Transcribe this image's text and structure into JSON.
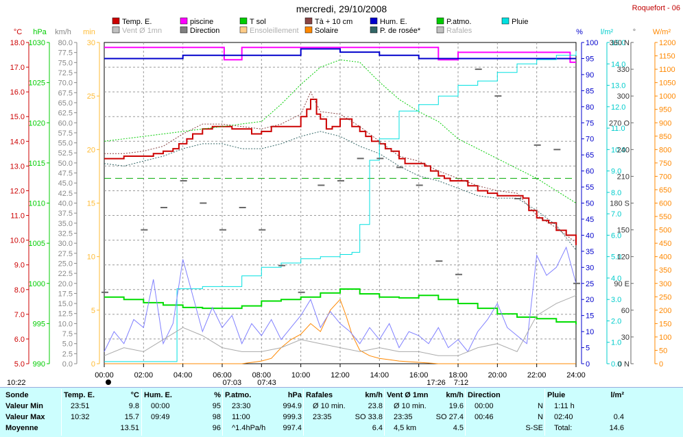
{
  "header": {
    "title": "mercredi, 29/10/2008",
    "location": "Roquefort - 06"
  },
  "legend": [
    {
      "label": "Temp. E.",
      "color": "#cc0000",
      "faded": false
    },
    {
      "label": "piscine",
      "color": "#ff00ff",
      "faded": false
    },
    {
      "label": "T sol",
      "color": "#00cc00",
      "faded": false
    },
    {
      "label": "Tà + 10 cm",
      "color": "#884444",
      "faded": false
    },
    {
      "label": "Hum. E.",
      "color": "#0000cc",
      "faded": false
    },
    {
      "label": "P.atmo.",
      "color": "#00cc00",
      "faded": false
    },
    {
      "label": "Pluie",
      "color": "#00e0e0",
      "faded": false
    },
    {
      "label": "Vent Ø 1mn",
      "color": "#c0c0c0",
      "faded": true
    },
    {
      "label": "Direction",
      "color": "#808080",
      "faded": false
    },
    {
      "label": "Ensoleillement",
      "color": "#ffcc88",
      "faded": true
    },
    {
      "label": "Solaire",
      "color": "#ff8800",
      "faded": false
    },
    {
      "label": "P. de rosée*",
      "color": "#336666",
      "faded": false
    },
    {
      "label": "Rafales",
      "color": "#c0c0c0",
      "faded": true
    }
  ],
  "axes_units": {
    "temp": "°C",
    "press": "hPa",
    "wind": "km/h",
    "sun": "min",
    "hum": "%",
    "rain": "l/m²",
    "dir": "°",
    "solar": "W/m²"
  },
  "chart_data": {
    "type": "line",
    "x_ticks": [
      "00:00",
      "02:00",
      "04:00",
      "06:00",
      "08:00",
      "10:00",
      "12:00",
      "14:00",
      "16:00",
      "18:00",
      "20:00",
      "22:00",
      "24:00"
    ],
    "y_axes": {
      "temp": {
        "min": 5.0,
        "max": 18.0,
        "step": 1.0,
        "unit": "°C"
      },
      "press": {
        "min": 990,
        "max": 1030,
        "step": 5,
        "unit": "hPa"
      },
      "wind": {
        "min": 0.0,
        "max": 80.0,
        "step": 2.5,
        "unit": "km/h"
      },
      "sun": {
        "min": 0,
        "max": 30,
        "step": 5,
        "unit": "min"
      },
      "hum": {
        "min": 0,
        "max": 100,
        "step": 5,
        "unit": "%"
      },
      "rain": {
        "min": 0.0,
        "max": 15.0,
        "step": 1.0,
        "unit": "l/m²"
      },
      "dir": {
        "ticks": [
          "0 N",
          "30",
          "60",
          "90 E",
          "120",
          "150",
          "180 S",
          "210",
          "240",
          "270 O",
          "300",
          "330",
          "360 N"
        ],
        "unit": "°"
      },
      "solar": {
        "min": 0,
        "max": 1200,
        "step": 50,
        "unit": "W/m²"
      }
    },
    "day_marks": {
      "sunrise": "07:03",
      "sunset": "17:26",
      "noon_start": "07:43",
      "noon_end": "7:12",
      "day_start": "10:22"
    },
    "series": [
      {
        "name": "Temp. E.",
        "axis": "temp",
        "x": [
          0,
          0.5,
          1,
          1.5,
          2,
          2.5,
          3,
          3.5,
          3.8,
          4.2,
          4.5,
          5,
          5.5,
          6,
          6.5,
          7,
          7.5,
          8,
          8.5,
          9,
          9.5,
          10,
          10.3,
          10.5,
          10.8,
          11,
          11.3,
          11.6,
          12,
          12.3,
          12.6,
          13,
          13.3,
          13.6,
          14,
          14.3,
          14.6,
          15,
          15.3,
          15.6,
          16,
          16.3,
          16.6,
          17,
          17.3,
          17.6,
          18,
          18.5,
          19,
          19.5,
          20,
          20.5,
          21,
          21.3,
          21.6,
          22,
          22.3,
          22.6,
          23,
          23.5,
          24
        ],
        "y": [
          13.3,
          13.3,
          13.4,
          13.4,
          13.4,
          13.5,
          13.6,
          13.7,
          13.9,
          14.1,
          14.3,
          14.5,
          14.6,
          14.6,
          14.5,
          14.5,
          14.3,
          14.4,
          14.6,
          14.6,
          14.6,
          15.0,
          15.3,
          15.7,
          15.1,
          14.9,
          14.5,
          14.6,
          14.9,
          14.9,
          14.6,
          14.4,
          14.2,
          14.0,
          13.9,
          13.7,
          13.6,
          13.3,
          13.1,
          13.1,
          13.1,
          13.0,
          12.8,
          12.6,
          12.5,
          12.4,
          12.4,
          12.2,
          12.0,
          11.9,
          11.8,
          11.8,
          11.8,
          11.7,
          11.2,
          10.9,
          10.8,
          10.7,
          10.4,
          10.2,
          9.8
        ]
      },
      {
        "name": "P. de rosée*",
        "axis": "temp",
        "x": [
          0,
          1,
          2,
          3,
          4,
          5,
          6,
          7,
          8,
          9,
          10,
          11,
          12,
          13,
          14,
          15,
          16,
          17,
          18,
          19,
          20,
          21,
          22,
          23,
          24
        ],
        "y": [
          13.1,
          13.0,
          13.2,
          13.4,
          13.7,
          13.9,
          13.9,
          13.7,
          13.7,
          13.9,
          14.2,
          14.4,
          14.2,
          13.8,
          13.5,
          13.0,
          12.6,
          12.4,
          12.1,
          11.8,
          11.7,
          11.7,
          11.2,
          10.6,
          9.6
        ]
      },
      {
        "name": "Tà + 10 cm",
        "axis": "temp",
        "x": [
          0,
          1,
          2,
          3,
          4,
          5,
          6,
          7,
          8,
          9,
          10,
          10.5,
          11,
          12,
          13,
          14,
          15,
          16,
          17,
          18,
          19,
          20,
          21,
          22,
          23,
          24
        ],
        "y": [
          13.5,
          13.5,
          13.6,
          13.8,
          14.3,
          14.7,
          14.7,
          14.6,
          14.5,
          14.7,
          15.1,
          16.0,
          15.2,
          15.1,
          14.6,
          14.0,
          13.4,
          13.2,
          12.8,
          12.5,
          12.2,
          12.0,
          11.9,
          11.0,
          10.5,
          9.9
        ]
      },
      {
        "name": "T sol",
        "axis": "temp",
        "x": [
          0,
          4,
          8,
          9,
          10,
          11,
          12,
          13,
          14,
          15,
          16,
          17,
          18,
          19,
          20,
          21,
          22,
          23,
          24
        ],
        "y": [
          14.0,
          14.4,
          14.8,
          15.5,
          16.3,
          17.0,
          17.3,
          17.2,
          16.4,
          15.7,
          15.2,
          14.8,
          14.1,
          13.7,
          13.3,
          12.9,
          12.5,
          12.0,
          11.5
        ]
      },
      {
        "name": "piscine",
        "axis": "temp",
        "x": [
          0,
          6,
          6.1,
          7,
          12,
          14,
          16,
          17,
          18,
          20,
          23.5,
          23.7,
          24
        ],
        "y": [
          17.8,
          17.8,
          17.3,
          17.8,
          17.8,
          17.8,
          17.8,
          17.3,
          17.6,
          17.6,
          17.6,
          17.2,
          17.2
        ]
      },
      {
        "name": "Hum. E.",
        "axis": "hum",
        "x": [
          0,
          2,
          4,
          6,
          8,
          10,
          12,
          14,
          16,
          18,
          20,
          22,
          24
        ],
        "y": [
          95,
          95,
          96,
          96,
          96,
          98,
          97,
          96,
          95,
          95,
          95,
          95,
          95
        ]
      },
      {
        "name": "P.atmo.",
        "axis": "press",
        "x": [
          0,
          1,
          2,
          3,
          4,
          5,
          6,
          7,
          8,
          9,
          10,
          11,
          12,
          13,
          14,
          15,
          16,
          17,
          18,
          19,
          20,
          21,
          22,
          23,
          24
        ],
        "y": [
          998.3,
          998.0,
          997.6,
          997.3,
          997.0,
          996.9,
          996.9,
          997.2,
          997.8,
          998.0,
          998.3,
          998.8,
          999.3,
          998.7,
          998.3,
          998.2,
          998.5,
          998.0,
          997.5,
          996.9,
          996.2,
          995.8,
          995.6,
          995.2,
          994.9
        ]
      },
      {
        "name": "Pluie",
        "axis": "rain",
        "x": [
          0,
          2,
          3.6,
          3.7,
          5,
          7,
          8,
          9,
          10,
          11,
          12,
          12.6,
          13,
          13.5,
          14,
          14.5,
          15,
          16,
          17,
          18,
          19,
          20,
          21,
          22,
          23,
          24
        ],
        "y": [
          0.1,
          0.1,
          0.1,
          3.5,
          3.6,
          4.1,
          4.5,
          4.7,
          4.9,
          5.0,
          5.1,
          5.2,
          6.5,
          9.5,
          10.5,
          10.5,
          11.8,
          12.1,
          12.5,
          13.0,
          13.2,
          13.6,
          14.0,
          14.2,
          14.4,
          14.6
        ]
      },
      {
        "name": "Solaire",
        "axis": "solar",
        "x": [
          0,
          7,
          8,
          8.5,
          9,
          9.5,
          10,
          10.5,
          11,
          11.5,
          12,
          12.3,
          12.6,
          13,
          13.5,
          14,
          14.5,
          15,
          16,
          17,
          24
        ],
        "y": [
          0,
          0,
          10,
          20,
          60,
          90,
          110,
          150,
          120,
          200,
          240,
          180,
          110,
          50,
          30,
          20,
          15,
          10,
          5,
          0,
          0
        ]
      },
      {
        "name": "Rafales",
        "axis": "wind",
        "x": [
          0,
          0.5,
          1,
          1.5,
          2,
          2.5,
          3,
          3.5,
          4,
          4.5,
          5,
          5.5,
          6,
          6.5,
          7,
          7.5,
          8,
          8.5,
          9,
          9.5,
          10,
          10.5,
          11,
          11.5,
          12,
          12.5,
          13,
          13.5,
          14,
          14.5,
          15,
          15.5,
          16,
          16.5,
          17,
          17.5,
          18,
          18.5,
          19,
          19.5,
          20,
          20.5,
          21,
          21.5,
          22,
          22.5,
          23,
          23.5,
          24
        ],
        "y": [
          3,
          8,
          5,
          11,
          9,
          21,
          5,
          10,
          26,
          17,
          8,
          14,
          9,
          12,
          5,
          10,
          7,
          11,
          6,
          9,
          12,
          16,
          9,
          13,
          10,
          8,
          5,
          9,
          6,
          10,
          4,
          8,
          7,
          5,
          9,
          4,
          6,
          3,
          8,
          11,
          15,
          9,
          7,
          5,
          27,
          22,
          24,
          29,
          20
        ]
      },
      {
        "name": "Vent Ø 1mn",
        "axis": "wind",
        "x": [
          0,
          1,
          2,
          3,
          4,
          5,
          6,
          7,
          8,
          9,
          10,
          11,
          12,
          13,
          14,
          15,
          16,
          17,
          18,
          19,
          20,
          21,
          22,
          23,
          24
        ],
        "y": [
          2,
          4,
          3,
          6,
          9,
          7,
          4,
          3,
          3,
          4,
          6,
          5,
          4,
          3,
          4,
          3,
          3,
          2,
          2,
          4,
          5,
          3,
          12,
          15,
          17
        ]
      },
      {
        "name": "Direction",
        "axis": "dir",
        "x": [
          0,
          2,
          3,
          4,
          5,
          6,
          7,
          8,
          9,
          10,
          11,
          12,
          13,
          14,
          15,
          16,
          17,
          18,
          19,
          20,
          21,
          22,
          23,
          24
        ],
        "y": [
          80,
          150,
          175,
          205,
          180,
          150,
          175,
          150,
          110,
          80,
          200,
          205,
          230,
          230,
          220,
          200,
          115,
          100,
          330,
          300,
          185,
          245,
          240,
          90
        ]
      }
    ],
    "guide_line": {
      "axis": "temp",
      "value": 12.5,
      "color": "#00aa00"
    },
    "grid": true,
    "legend_position": "top"
  },
  "stats": {
    "labels": [
      "Sonde",
      "Valeur Min",
      "Valeur Max",
      "Moyenne"
    ],
    "columns": [
      {
        "title": "Temp. E.",
        "unit": "°C",
        "rows": [
          [
            "23:51",
            "9.8"
          ],
          [
            "10:32",
            "15.7"
          ],
          [
            "",
            "13.51"
          ]
        ]
      },
      {
        "title": "Hum. E.",
        "unit": "%",
        "rows": [
          [
            "00:00",
            "95"
          ],
          [
            "09:49",
            "98"
          ],
          [
            "",
            "96"
          ]
        ]
      },
      {
        "title": "P.atmo.",
        "unit": "hPa",
        "rows": [
          [
            "23:30",
            "994.9"
          ],
          [
            "11:00",
            "999.3"
          ],
          [
            "^1.4hPa/h",
            "997.4"
          ]
        ]
      },
      {
        "title": "Rafales",
        "unit": "km/h",
        "rows": [
          [
            "Ø 10 min.",
            "23.8"
          ],
          [
            "23:35",
            "SO 33.8"
          ],
          [
            "",
            "6.4"
          ]
        ]
      },
      {
        "title": "Vent Ø 1mn",
        "unit": "km/h",
        "rows": [
          [
            "Ø 10 min.",
            "19.6"
          ],
          [
            "23:35",
            "SO 27.4"
          ],
          [
            "4,5 km",
            "4.5"
          ]
        ]
      },
      {
        "title": "Direction",
        "unit": "",
        "rows": [
          [
            "00:00",
            "N"
          ],
          [
            "00:46",
            "N"
          ],
          [
            "",
            "S-SE"
          ]
        ]
      },
      {
        "title": "Pluie",
        "unit": "l/m²",
        "rows": [
          [
            "1:11 h",
            ""
          ],
          [
            "02:40",
            "0.4"
          ],
          [
            "Total:",
            "14.6"
          ]
        ]
      }
    ]
  }
}
